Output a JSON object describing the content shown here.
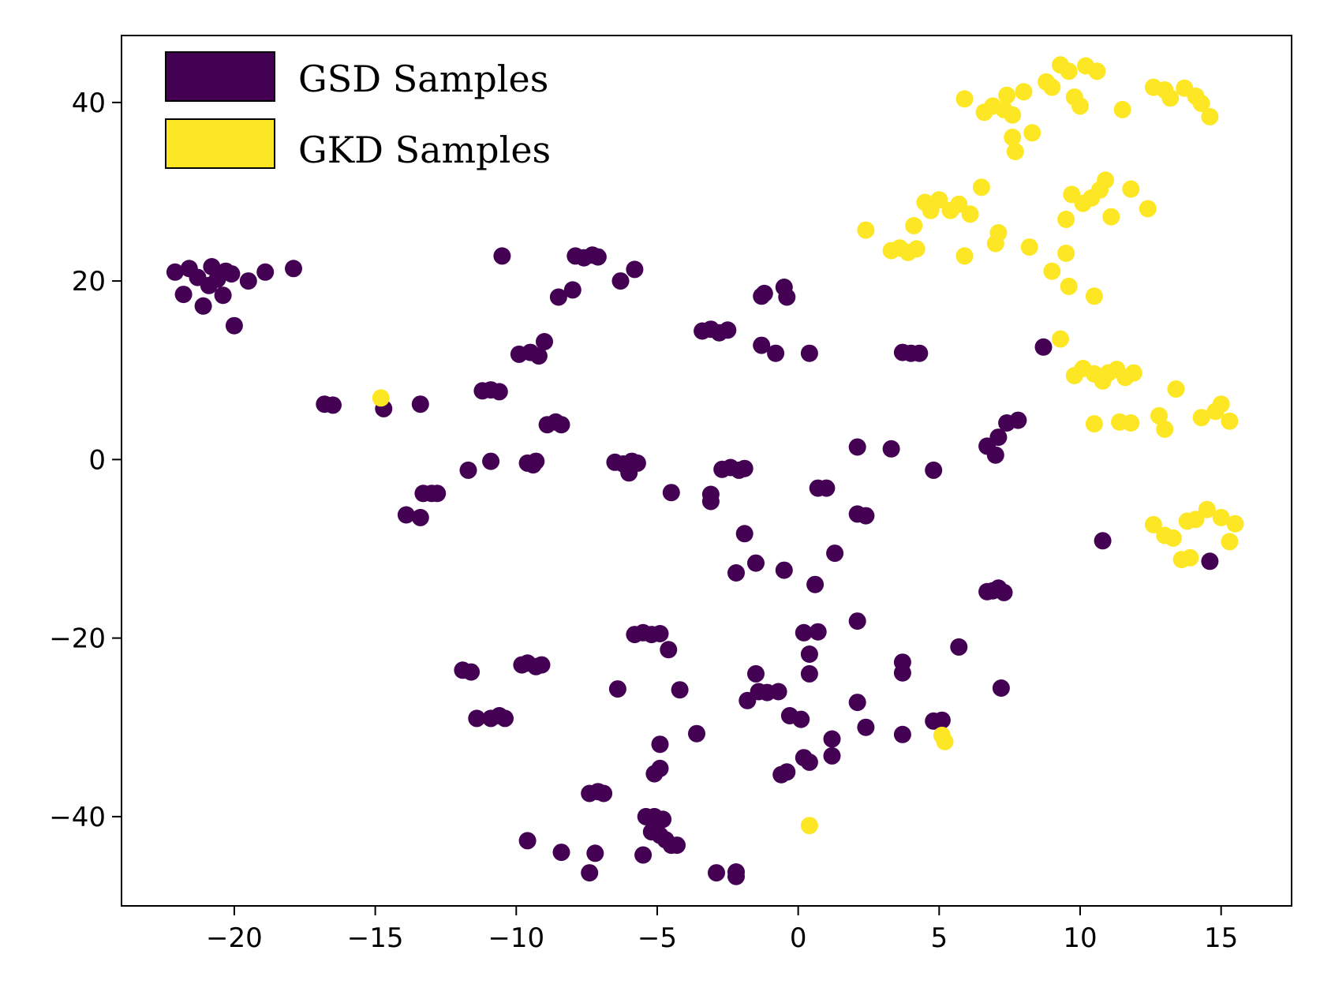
{
  "chart_data": {
    "type": "scatter",
    "title": "",
    "xlabel": "",
    "ylabel": "",
    "xlim": [
      -24,
      17.5
    ],
    "ylim": [
      -50,
      47.5
    ],
    "xticks": [
      -20,
      -15,
      -10,
      -5,
      0,
      5,
      10,
      15
    ],
    "yticks": [
      -40,
      -20,
      0,
      20,
      40
    ],
    "xtick_labels": [
      "−20",
      "−15",
      "−10",
      "−5",
      "0",
      "5",
      "10",
      "15"
    ],
    "ytick_labels": [
      "−40",
      "−20",
      "0",
      "20",
      "40"
    ],
    "grid": false,
    "legend_position": "top-left",
    "series": [
      {
        "name": "GSD Samples",
        "color": "#440154",
        "points": [
          [
            -22.1,
            21
          ],
          [
            -21.8,
            18.5
          ],
          [
            -21.6,
            21.4
          ],
          [
            -21.3,
            20.4
          ],
          [
            -21.1,
            17.2
          ],
          [
            -20.9,
            19.5
          ],
          [
            -20.8,
            21.6
          ],
          [
            -20.6,
            20.2
          ],
          [
            -20.4,
            18.4
          ],
          [
            -20.3,
            21.1
          ],
          [
            -20.1,
            20.8
          ],
          [
            -20.0,
            15
          ],
          [
            -19.5,
            20
          ],
          [
            -18.9,
            21
          ],
          [
            -17.9,
            21.4
          ],
          [
            -16.8,
            6.2
          ],
          [
            -16.5,
            6.1
          ],
          [
            -14.7,
            5.7
          ],
          [
            -13.4,
            6.2
          ],
          [
            -13.9,
            -6.2
          ],
          [
            -13.4,
            -6.5
          ],
          [
            -13.3,
            -3.8
          ],
          [
            -13.0,
            -3.8
          ],
          [
            -12.8,
            -3.8
          ],
          [
            -11.9,
            -23.6
          ],
          [
            -11.6,
            -23.8
          ],
          [
            -11.7,
            -1.2
          ],
          [
            -11.4,
            -29
          ],
          [
            -11.2,
            7.7
          ],
          [
            -10.9,
            7.8
          ],
          [
            -10.6,
            7.6
          ],
          [
            -10.9,
            -0.2
          ],
          [
            -10.9,
            -29
          ],
          [
            -10.6,
            -28.7
          ],
          [
            -10.4,
            -29
          ],
          [
            -10.5,
            22.8
          ],
          [
            -9.9,
            11.8
          ],
          [
            -9.5,
            12
          ],
          [
            -9.2,
            11.6
          ],
          [
            -9.0,
            13.2
          ],
          [
            -9.6,
            -0.4
          ],
          [
            -9.4,
            -0.6
          ],
          [
            -9.3,
            -0.2
          ],
          [
            -9.8,
            -23
          ],
          [
            -9.6,
            -22.8
          ],
          [
            -9.3,
            -23.2
          ],
          [
            -9.1,
            -23
          ],
          [
            -9.6,
            -42.7
          ],
          [
            -8.9,
            3.9
          ],
          [
            -8.6,
            4.2
          ],
          [
            -8.4,
            3.9
          ],
          [
            -8.5,
            18.2
          ],
          [
            -8.0,
            19
          ],
          [
            -8.4,
            -44
          ],
          [
            -7.9,
            22.8
          ],
          [
            -7.6,
            22.6
          ],
          [
            -7.3,
            22.9
          ],
          [
            -7.1,
            22.7
          ],
          [
            -7.4,
            -37.4
          ],
          [
            -7.1,
            -37.2
          ],
          [
            -6.9,
            -37.4
          ],
          [
            -7.4,
            -46.3
          ],
          [
            -7.2,
            -44.1
          ],
          [
            -6.3,
            20
          ],
          [
            -5.8,
            21.3
          ],
          [
            -6.5,
            -0.3
          ],
          [
            -6.2,
            -0.5
          ],
          [
            -5.9,
            -0.2
          ],
          [
            -5.7,
            -0.4
          ],
          [
            -6.0,
            -1.5
          ],
          [
            -6.4,
            -25.7
          ],
          [
            -5.8,
            -19.6
          ],
          [
            -5.5,
            -19.4
          ],
          [
            -5.2,
            -19.6
          ],
          [
            -4.9,
            -19.5
          ],
          [
            -4.6,
            -21.3
          ],
          [
            -5.4,
            -40
          ],
          [
            -5.1,
            -40
          ],
          [
            -4.8,
            -40.3
          ],
          [
            -5.2,
            -41.7
          ],
          [
            -4.9,
            -42.1
          ],
          [
            -4.7,
            -42.6
          ],
          [
            -4.5,
            -43.2
          ],
          [
            -4.3,
            -43.2
          ],
          [
            -5.5,
            -44.3
          ],
          [
            -5.1,
            -35.2
          ],
          [
            -4.9,
            -34.6
          ],
          [
            -4.9,
            -31.9
          ],
          [
            -4.5,
            -3.7
          ],
          [
            -4.2,
            -25.8
          ],
          [
            -3.6,
            -30.7
          ],
          [
            -3.4,
            14.4
          ],
          [
            -3.1,
            14.6
          ],
          [
            -2.8,
            14.2
          ],
          [
            -2.5,
            14.5
          ],
          [
            -3.1,
            -3.9
          ],
          [
            -3.1,
            -4.7
          ],
          [
            -2.7,
            -1.1
          ],
          [
            -2.4,
            -0.9
          ],
          [
            -2.1,
            -1.2
          ],
          [
            -1.9,
            -1.0
          ],
          [
            -2.9,
            -46.3
          ],
          [
            -2.2,
            -46.2
          ],
          [
            -2.2,
            -46.7
          ],
          [
            -1.9,
            -8.3
          ],
          [
            -2.2,
            -12.7
          ],
          [
            -1.5,
            -11.6
          ],
          [
            -1.8,
            -27
          ],
          [
            -1.5,
            -24
          ],
          [
            -1.4,
            -26
          ],
          [
            -1.1,
            -26.1
          ],
          [
            -1.2,
            18.6
          ],
          [
            -1.3,
            18.3
          ],
          [
            -1.3,
            12.8
          ],
          [
            -0.8,
            11.9
          ],
          [
            -0.5,
            -12.4
          ],
          [
            -0.7,
            -26
          ],
          [
            -0.5,
            19.3
          ],
          [
            -0.4,
            18.2
          ],
          [
            0.4,
            11.9
          ],
          [
            -0.3,
            -28.7
          ],
          [
            0.1,
            -29.1
          ],
          [
            -0.6,
            -35.3
          ],
          [
            -0.4,
            -35
          ],
          [
            0.2,
            -33.4
          ],
          [
            0.4,
            -33.9
          ],
          [
            0.4,
            -24
          ],
          [
            0.4,
            -21.8
          ],
          [
            0.2,
            -19.4
          ],
          [
            0.7,
            -19.3
          ],
          [
            0.6,
            -14
          ],
          [
            0.7,
            -3.2
          ],
          [
            1.0,
            -3.2
          ],
          [
            1.2,
            -31.3
          ],
          [
            1.2,
            -33.2
          ],
          [
            1.3,
            -10.5
          ],
          [
            2.1,
            1.4
          ],
          [
            2.1,
            -6.1
          ],
          [
            2.4,
            -6.3
          ],
          [
            2.1,
            -18.1
          ],
          [
            2.1,
            -27.2
          ],
          [
            2.4,
            -30
          ],
          [
            3.3,
            1.2
          ],
          [
            3.7,
            12
          ],
          [
            4.0,
            11.9
          ],
          [
            4.3,
            11.9
          ],
          [
            3.7,
            -22.7
          ],
          [
            3.7,
            -23.9
          ],
          [
            3.7,
            -30.8
          ],
          [
            4.8,
            -1.2
          ],
          [
            4.8,
            -29.3
          ],
          [
            5.1,
            -29.2
          ],
          [
            5.7,
            -21
          ],
          [
            6.7,
            1.5
          ],
          [
            7.1,
            2.5
          ],
          [
            7.0,
            0.5
          ],
          [
            6.7,
            -14.8
          ],
          [
            6.9,
            -14.7
          ],
          [
            7.1,
            -14.4
          ],
          [
            7.3,
            -14.9
          ],
          [
            7.2,
            -25.6
          ],
          [
            7.4,
            4.1
          ],
          [
            7.8,
            4.4
          ],
          [
            8.7,
            12.6
          ],
          [
            10.8,
            -9.1
          ],
          [
            14.6,
            -11.4
          ]
        ]
      },
      {
        "name": "GKD Samples",
        "color": "#fde725",
        "points": [
          [
            -14.8,
            6.9
          ],
          [
            2.4,
            25.7
          ],
          [
            3.3,
            23.4
          ],
          [
            3.6,
            23.7
          ],
          [
            3.9,
            23.2
          ],
          [
            4.2,
            23.6
          ],
          [
            4.1,
            26.2
          ],
          [
            4.5,
            28.8
          ],
          [
            4.7,
            27.9
          ],
          [
            5.0,
            29.1
          ],
          [
            5.4,
            27.9
          ],
          [
            5.7,
            28.6
          ],
          [
            6.1,
            27.5
          ],
          [
            5.1,
            -30.9
          ],
          [
            5.2,
            -31.6
          ],
          [
            5.9,
            22.8
          ],
          [
            6.5,
            30.5
          ],
          [
            7.0,
            24.2
          ],
          [
            7.1,
            25.4
          ],
          [
            8.2,
            23.8
          ],
          [
            9.0,
            21.1
          ],
          [
            9.5,
            23.1
          ],
          [
            9.6,
            19.4
          ],
          [
            10.5,
            18.3
          ],
          [
            5.9,
            40.4
          ],
          [
            6.6,
            38.9
          ],
          [
            6.9,
            39.6
          ],
          [
            7.3,
            39.2
          ],
          [
            7.4,
            40.8
          ],
          [
            7.6,
            36.1
          ],
          [
            7.7,
            34.5
          ],
          [
            7.6,
            38.6
          ],
          [
            8.0,
            41.2
          ],
          [
            8.3,
            36.6
          ],
          [
            8.8,
            42.3
          ],
          [
            9.0,
            41.7
          ],
          [
            9.3,
            44.2
          ],
          [
            9.6,
            43.5
          ],
          [
            9.8,
            40.6
          ],
          [
            10.0,
            39.6
          ],
          [
            10.2,
            44.1
          ],
          [
            10.6,
            43.5
          ],
          [
            11.5,
            39.2
          ],
          [
            12.6,
            41.7
          ],
          [
            13.0,
            41.4
          ],
          [
            13.2,
            40.5
          ],
          [
            13.7,
            41.6
          ],
          [
            14.1,
            40.7
          ],
          [
            14.3,
            39.9
          ],
          [
            14.6,
            38.4
          ],
          [
            9.5,
            26.9
          ],
          [
            9.7,
            29.7
          ],
          [
            10.1,
            28.7
          ],
          [
            10.4,
            29.3
          ],
          [
            10.7,
            30.2
          ],
          [
            10.9,
            31.3
          ],
          [
            11.1,
            27.2
          ],
          [
            11.8,
            30.3
          ],
          [
            12.4,
            28.1
          ],
          [
            9.3,
            13.5
          ],
          [
            9.8,
            9.4
          ],
          [
            10.1,
            10.2
          ],
          [
            10.5,
            9.6
          ],
          [
            10.8,
            8.8
          ],
          [
            11.0,
            9.7
          ],
          [
            11.3,
            10.1
          ],
          [
            11.6,
            9.2
          ],
          [
            11.9,
            9.7
          ],
          [
            10.5,
            4.0
          ],
          [
            11.4,
            4.2
          ],
          [
            11.8,
            4.1
          ],
          [
            12.8,
            4.9
          ],
          [
            13.0,
            3.4
          ],
          [
            13.4,
            7.9
          ],
          [
            14.3,
            4.7
          ],
          [
            14.8,
            5.4
          ],
          [
            15.0,
            6.2
          ],
          [
            15.3,
            4.3
          ],
          [
            12.6,
            -7.3
          ],
          [
            13.0,
            -8.5
          ],
          [
            13.3,
            -8.8
          ],
          [
            13.6,
            -11.2
          ],
          [
            13.9,
            -11
          ],
          [
            13.8,
            -6.9
          ],
          [
            14.1,
            -6.7
          ],
          [
            14.5,
            -5.6
          ],
          [
            15.0,
            -6.5
          ],
          [
            15.3,
            -9.2
          ],
          [
            15.5,
            -7.2
          ],
          [
            0.4,
            -41
          ]
        ]
      }
    ]
  }
}
